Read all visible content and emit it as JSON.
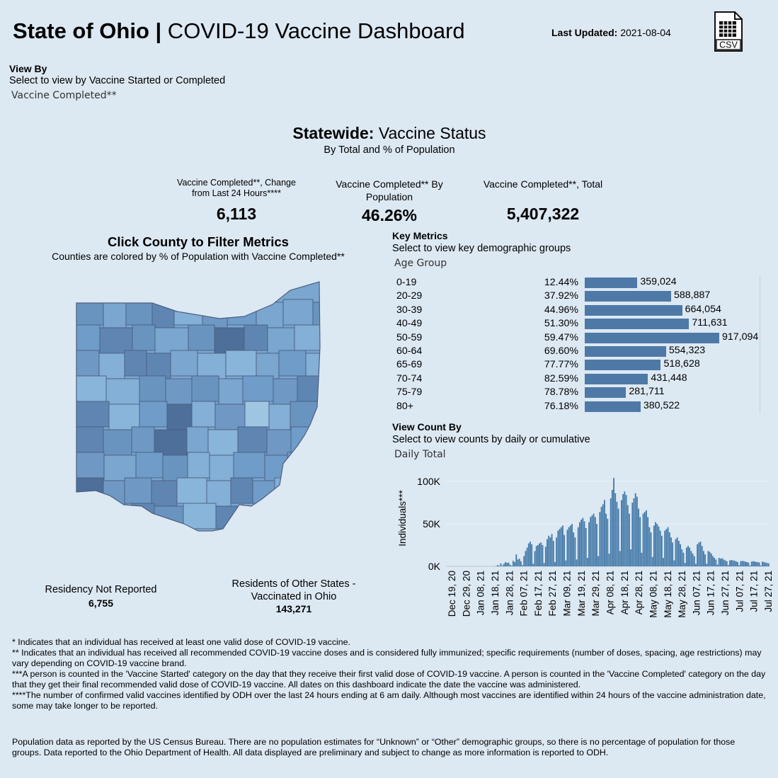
{
  "header": {
    "title_bold": "State of Ohio |",
    "title_rest": " COVID-19 Vaccine Dashboard",
    "last_updated_label": "Last Updated:",
    "last_updated_value": " 2021-08-04",
    "csv_label": "CSV"
  },
  "view_by": {
    "label": "View By",
    "desc": "Select to view by Vaccine Started or Completed",
    "value": "Vaccine Completed**"
  },
  "statewide": {
    "title_bold": "Statewide:",
    "title_rest": " Vaccine Status",
    "subtitle": "By Total and % of Population"
  },
  "kpis": {
    "change": {
      "title": "Vaccine Completed**, Change from Last 24 Hours****",
      "value": "6,113"
    },
    "by_population": {
      "title": "Vaccine Completed** By Population",
      "value": "46.26%"
    },
    "total": {
      "title": "Vaccine Completed**, Total",
      "value": "5,407,322"
    }
  },
  "map": {
    "title": "Click County to Filter Metrics",
    "subtitle": "Counties are colored by % of Population with Vaccine Completed**",
    "residency_not_reported_label": "Residency Not Reported",
    "residency_not_reported_value": "6,755",
    "other_states_label": "Residents of Other States - Vaccinated in Ohio",
    "other_states_value": "143,271"
  },
  "key_metrics": {
    "label": "Key Metrics",
    "desc": "Select to view key demographic groups",
    "value": "Age Group",
    "rows": [
      {
        "group": "0-19",
        "pct": "12.44%",
        "count": "359,024",
        "n": 359024
      },
      {
        "group": "20-29",
        "pct": "37.92%",
        "count": "588,887",
        "n": 588887
      },
      {
        "group": "30-39",
        "pct": "44.96%",
        "count": "664,054",
        "n": 664054
      },
      {
        "group": "40-49",
        "pct": "51.30%",
        "count": "711,631",
        "n": 711631
      },
      {
        "group": "50-59",
        "pct": "59.47%",
        "count": "917,094",
        "n": 917094
      },
      {
        "group": "60-64",
        "pct": "69.60%",
        "count": "554,323",
        "n": 554323
      },
      {
        "group": "65-69",
        "pct": "77.77%",
        "count": "518,628",
        "n": 518628
      },
      {
        "group": "70-74",
        "pct": "82.59%",
        "count": "431,448",
        "n": 431448
      },
      {
        "group": "75-79",
        "pct": "78.78%",
        "count": "281,711",
        "n": 281711
      },
      {
        "group": "80+",
        "pct": "76.18%",
        "count": "380,522",
        "n": 380522
      }
    ]
  },
  "view_count": {
    "label": "View Count By",
    "desc": "Select to view counts by daily or cumulative",
    "value": "Daily Total"
  },
  "chart_data": {
    "type": "bar",
    "title": "",
    "xlabel": "",
    "ylabel": "Individuals***",
    "ylim": [
      0,
      110000
    ],
    "y_ticks": [
      {
        "v": 0,
        "label": "0K"
      },
      {
        "v": 50000,
        "label": "50K"
      },
      {
        "v": 100000,
        "label": "100K"
      }
    ],
    "x_tick_labels": [
      "Dec 19, 20",
      "Dec 29, 20",
      "Jan 08, 21",
      "Jan 18, 21",
      "Jan 28, 21",
      "Feb 07, 21",
      "Feb 17, 21",
      "Feb 27, 21",
      "Mar 09, 21",
      "Mar 19, 21",
      "Mar 29, 21",
      "Apr 08, 21",
      "Apr 18, 21",
      "Apr 28, 21",
      "May 08, 21",
      "May 18, 21",
      "May 28, 21",
      "Jun 07, 21",
      "Jun 17, 21",
      "Jun 27, 21",
      "Jul 07, 21",
      "Jul 17, 21",
      "Jul 27, 21"
    ],
    "values": [
      0,
      0,
      0,
      0,
      0,
      0,
      0,
      0,
      0,
      0,
      0,
      0,
      0,
      0,
      0,
      0,
      0,
      0,
      0,
      0,
      0,
      0,
      0,
      0,
      0,
      0,
      0,
      0,
      0,
      0,
      0,
      100,
      300,
      1500,
      600,
      3500,
      800,
      3000,
      5000,
      4000,
      4500,
      2000,
      700,
      6500,
      5000,
      14000,
      8000,
      9000,
      6000,
      1500,
      12000,
      18000,
      22000,
      27000,
      29000,
      26000,
      3000,
      18000,
      24000,
      25000,
      27000,
      28000,
      25000,
      4000,
      23000,
      32000,
      36000,
      34000,
      38000,
      30000,
      5000,
      34000,
      42000,
      44000,
      46000,
      48000,
      37000,
      7000,
      43000,
      46000,
      48000,
      50000,
      40000,
      34000,
      8000,
      46000,
      52000,
      55000,
      57000,
      53000,
      45000,
      10000,
      52000,
      58000,
      60000,
      62000,
      58000,
      50000,
      12000,
      64000,
      70000,
      73000,
      78000,
      62000,
      56000,
      15000,
      80000,
      90000,
      104000,
      86000,
      76000,
      68000,
      18000,
      78000,
      85000,
      88000,
      84000,
      72000,
      62000,
      20000,
      75000,
      80000,
      86000,
      82000,
      68000,
      58000,
      16000,
      62000,
      64000,
      66000,
      58000,
      46000,
      40000,
      11000,
      48000,
      52000,
      50000,
      47000,
      42000,
      36000,
      10000,
      42000,
      44000,
      46000,
      40000,
      34000,
      28000,
      7000,
      32000,
      34000,
      30000,
      26000,
      20000,
      16000,
      4000,
      22000,
      24000,
      22000,
      18000,
      15000,
      12000,
      3000,
      26000,
      28000,
      29000,
      24000,
      18000,
      14000,
      3000,
      18000,
      17000,
      15000,
      12000,
      10000,
      8000,
      2000,
      10000,
      9000,
      9500,
      8000,
      7000,
      6000,
      1500,
      7000,
      7500,
      7000,
      6500,
      6000,
      5000,
      1200,
      6000,
      6500,
      6000,
      5500,
      5000,
      4500,
      1000,
      5500,
      6000,
      5800,
      5200,
      5000,
      4500,
      1000,
      5500,
      5000,
      4500,
      4000,
      3500
    ]
  },
  "footnotes": {
    "n1": "* Indicates that an individual has received at least one valid dose of COVID-19 vaccine.",
    "n2": "** Indicates that an individual has received all recommended COVID-19 vaccine doses and is considered fully immunized; specific requirements (number of doses, spacing, age restrictions) may vary depending on COVID-19 vaccine brand.",
    "n3": "***A person is counted in the 'Vaccine Started' category on the day that they receive their first valid dose of COVID-19 vaccine.  A person is counted in the 'Vaccine Completed' category on the day that they get their final recommended valid dose of COVID-19 vaccine. All dates on this dashboard indicate the date the vaccine was administered.",
    "n4": "****The number of confirmed valid vaccines identified by ODH over the last 24 hours ending at 6 am daily. Although most vaccines are identified within 24 hours of the vaccine administration date, some may take longer to be reported.",
    "population": "Population data as reported by the US Census Bureau. There are no population estimates for “Unknown” or “Other” demographic groups, so there is no percentage of population for those groups.  Data reported to the Ohio Department of Health.  All data displayed are preliminary and subject to change as more information is reported to ODH."
  },
  "colors": {
    "background": "#dce8f2",
    "bar": "#4e79a7",
    "timeline_bar": "#3f76a6",
    "county_light": "#9ec6e2",
    "county_mid": "#7aa6cf",
    "county_dark": "#4d6f9a"
  }
}
